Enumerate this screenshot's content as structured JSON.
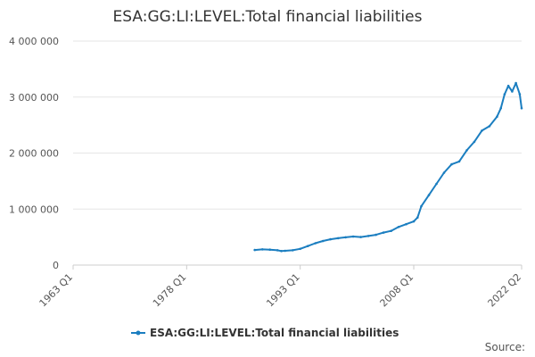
{
  "chart_data": {
    "type": "line",
    "title": "ESA:GG:LI:LEVEL:Total financial liabilities",
    "xlabel": "",
    "ylabel": "",
    "x_ticks": [
      "1963 Q1",
      "1978 Q1",
      "1993 Q1",
      "2008 Q1",
      "2022 Q2"
    ],
    "y_ticks": [
      "0",
      "1 000 000",
      "2 000 000",
      "3 000 000",
      "4 000 000"
    ],
    "xlim": [
      "1963 Q1",
      "2022 Q2"
    ],
    "ylim": [
      0,
      4000000
    ],
    "grid": true,
    "legend_position": "bottom",
    "source_label": "Source:",
    "series": [
      {
        "name": "ESA:GG:LI:LEVEL:Total financial liabilities",
        "color": "#1b7ec0",
        "points": [
          [
            "1987 Q1",
            270000
          ],
          [
            "1988 Q1",
            280000
          ],
          [
            "1989 Q1",
            275000
          ],
          [
            "1990 Q1",
            265000
          ],
          [
            "1990 Q3",
            250000
          ],
          [
            "1991 Q1",
            255000
          ],
          [
            "1992 Q1",
            265000
          ],
          [
            "1993 Q1",
            290000
          ],
          [
            "1994 Q1",
            340000
          ],
          [
            "1995 Q1",
            390000
          ],
          [
            "1996 Q1",
            430000
          ],
          [
            "1997 Q1",
            460000
          ],
          [
            "1998 Q1",
            480000
          ],
          [
            "1999 Q1",
            495000
          ],
          [
            "2000 Q1",
            510000
          ],
          [
            "2001 Q1",
            500000
          ],
          [
            "2002 Q1",
            520000
          ],
          [
            "2003 Q1",
            540000
          ],
          [
            "2004 Q1",
            580000
          ],
          [
            "2005 Q1",
            610000
          ],
          [
            "2006 Q1",
            680000
          ],
          [
            "2007 Q1",
            730000
          ],
          [
            "2008 Q1",
            780000
          ],
          [
            "2008 Q3",
            850000
          ],
          [
            "2009 Q1",
            1050000
          ],
          [
            "2010 Q1",
            1250000
          ],
          [
            "2011 Q1",
            1450000
          ],
          [
            "2012 Q1",
            1650000
          ],
          [
            "2013 Q1",
            1800000
          ],
          [
            "2014 Q1",
            1850000
          ],
          [
            "2015 Q1",
            2050000
          ],
          [
            "2016 Q1",
            2200000
          ],
          [
            "2017 Q1",
            2400000
          ],
          [
            "2018 Q1",
            2480000
          ],
          [
            "2019 Q1",
            2650000
          ],
          [
            "2019 Q3",
            2800000
          ],
          [
            "2020 Q1",
            3050000
          ],
          [
            "2020 Q3",
            3200000
          ],
          [
            "2021 Q1",
            3100000
          ],
          [
            "2021 Q3",
            3250000
          ],
          [
            "2022 Q1",
            3050000
          ],
          [
            "2022 Q2",
            2800000
          ]
        ]
      }
    ]
  }
}
